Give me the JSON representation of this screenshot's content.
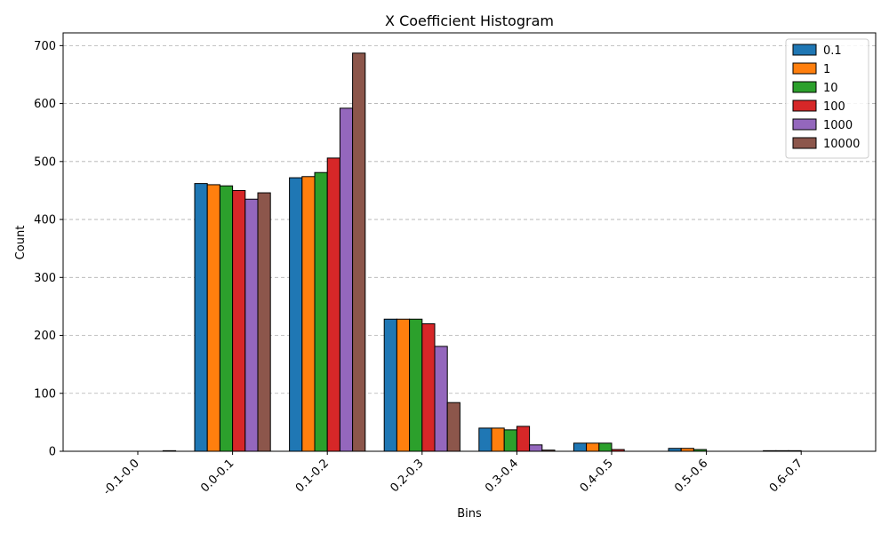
{
  "chart_data": {
    "type": "bar",
    "title": "X Coefficient Histogram",
    "xlabel": "Bins",
    "ylabel": "Count",
    "ylim": [
      0,
      722
    ],
    "yticks": [
      0,
      100,
      200,
      300,
      400,
      500,
      600,
      700
    ],
    "categories": [
      "-0.1-0.0",
      "0.0-0.1",
      "0.1-0.2",
      "0.2-0.3",
      "0.3-0.4",
      "0.4-0.5",
      "0.5-0.6",
      "0.6-0.7"
    ],
    "grid": "y-dashed",
    "legend_position": "top-right",
    "series": [
      {
        "name": "0.1",
        "color": "#1f77b4",
        "values": [
          0,
          462,
          472,
          228,
          40,
          14,
          5,
          1
        ]
      },
      {
        "name": "1",
        "color": "#ff7f0e",
        "values": [
          0,
          460,
          474,
          228,
          40,
          14,
          5,
          1
        ]
      },
      {
        "name": "10",
        "color": "#2ca02c",
        "values": [
          0,
          458,
          481,
          228,
          37,
          14,
          3,
          1
        ]
      },
      {
        "name": "100",
        "color": "#d62728",
        "values": [
          0,
          450,
          506,
          220,
          43,
          3,
          0,
          0
        ]
      },
      {
        "name": "1000",
        "color": "#9467bd",
        "values": [
          0,
          435,
          592,
          181,
          11,
          0,
          0,
          0
        ]
      },
      {
        "name": "10000",
        "color": "#8c564b",
        "values": [
          1,
          446,
          687,
          84,
          2,
          0,
          0,
          0
        ]
      }
    ]
  }
}
